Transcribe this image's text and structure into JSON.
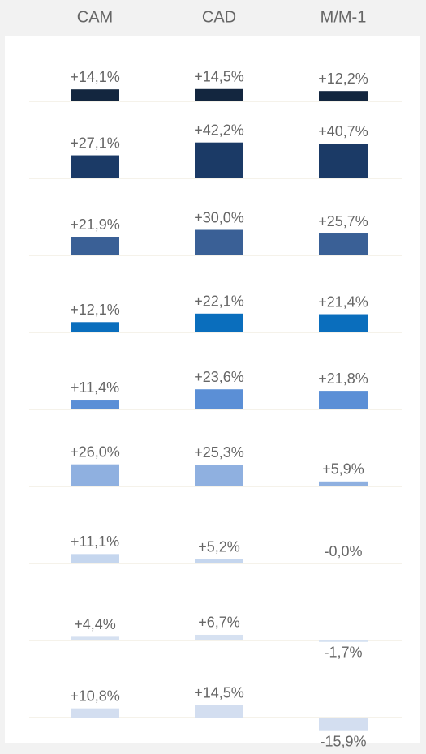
{
  "chart_data": {
    "type": "bar",
    "categories": [
      "CAM",
      "CAD",
      "M/M-1"
    ],
    "series": [
      {
        "color": "#13263f",
        "values": [
          14.1,
          14.5,
          12.2
        ],
        "value_labels": [
          "+14,1%",
          "+14,5%",
          "+12,2%"
        ]
      },
      {
        "color": "#1b3a66",
        "values": [
          27.1,
          42.2,
          40.7
        ],
        "value_labels": [
          "+27,1%",
          "+42,2%",
          "+40,7%"
        ]
      },
      {
        "color": "#3a6096",
        "values": [
          21.9,
          30.0,
          25.7
        ],
        "value_labels": [
          "+21,9%",
          "+30,0%",
          "+25,7%"
        ]
      },
      {
        "color": "#0a6ebd",
        "values": [
          12.1,
          22.1,
          21.4
        ],
        "value_labels": [
          "+12,1%",
          "+22,1%",
          "+21,4%"
        ]
      },
      {
        "color": "#5b8fd6",
        "values": [
          11.4,
          23.6,
          21.8
        ],
        "value_labels": [
          "+11,4%",
          "+23,6%",
          "+21,8%"
        ]
      },
      {
        "color": "#8fb0e0",
        "values": [
          26.0,
          25.3,
          5.9
        ],
        "value_labels": [
          "+26,0%",
          "+25,3%",
          "+5,9%"
        ]
      },
      {
        "color": "#c5d6ee",
        "values": [
          11.1,
          5.2,
          -0.0
        ],
        "value_labels": [
          "+11,1%",
          "+5,2%",
          "-0,0%"
        ]
      },
      {
        "color": "#d6e1f1",
        "values": [
          4.4,
          6.7,
          -1.7
        ],
        "value_labels": [
          "+4,4%",
          "+6,7%",
          "-1,7%"
        ]
      },
      {
        "color": "#d3def0",
        "values": [
          10.8,
          14.5,
          -15.9
        ],
        "value_labels": [
          "+10,8%",
          "+14,5%",
          "-15,9%"
        ]
      }
    ]
  }
}
